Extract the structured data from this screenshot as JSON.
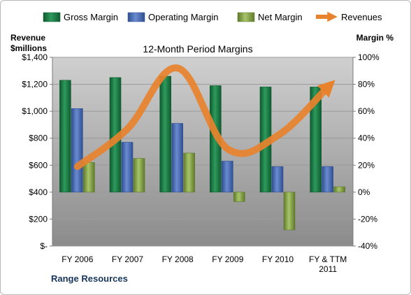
{
  "chart_data": {
    "type": "bar",
    "title": "12-Month Period Margins",
    "categories": [
      "FY 2006",
      "FY 2007",
      "FY 2008",
      "FY 2009",
      "FY 2010",
      "FY & TTM 2011"
    ],
    "category_lines": [
      [
        "FY 2006"
      ],
      [
        "FY 2007"
      ],
      [
        "FY 2008"
      ],
      [
        "FY 2009"
      ],
      [
        "FY 2010"
      ],
      [
        "FY & TTM",
        "2011"
      ]
    ],
    "series": [
      {
        "name": "Gross Margin",
        "axis": "right",
        "kind": "bar",
        "color": "#1e7a46",
        "values": [
          83,
          85,
          86,
          79,
          78,
          78
        ]
      },
      {
        "name": "Operating Margin",
        "axis": "right",
        "kind": "bar",
        "color": "#4a6cb3",
        "values": [
          62,
          37,
          51,
          23,
          19,
          19
        ]
      },
      {
        "name": "Net Margin",
        "axis": "right",
        "kind": "bar",
        "color": "#8aa84a",
        "values": [
          22,
          25,
          29,
          -7,
          -28,
          4
        ]
      },
      {
        "name": "Revenues",
        "axis": "left",
        "kind": "line",
        "color": "#e8822d",
        "values": [
          590,
          870,
          1320,
          720,
          820,
          1180
        ]
      }
    ],
    "left_axis": {
      "label_lines": [
        "Revenue",
        "$millions"
      ],
      "ylim": [
        0,
        1400
      ],
      "ticks": [
        0,
        200,
        400,
        600,
        800,
        1000,
        1200,
        1400
      ],
      "tick_labels": [
        "$-",
        "$200",
        "$400",
        "$600",
        "$800",
        "$1,000",
        "$1,200",
        "$1,400"
      ]
    },
    "right_axis": {
      "label": "Margin %",
      "ylim": [
        -40,
        100
      ],
      "ticks": [
        -40,
        -20,
        0,
        20,
        40,
        60,
        80,
        100
      ],
      "tick_labels": [
        "-40%",
        "-20%",
        "0%",
        "20%",
        "40%",
        "60%",
        "80%",
        "100%"
      ]
    },
    "legend_position": "top",
    "grid": true
  },
  "footer": {
    "company": "Range Resources"
  },
  "colors": {
    "plot_top": "#cdcdcd",
    "plot_bottom": "#8c8c8c",
    "grid": "#9a9a9a"
  }
}
